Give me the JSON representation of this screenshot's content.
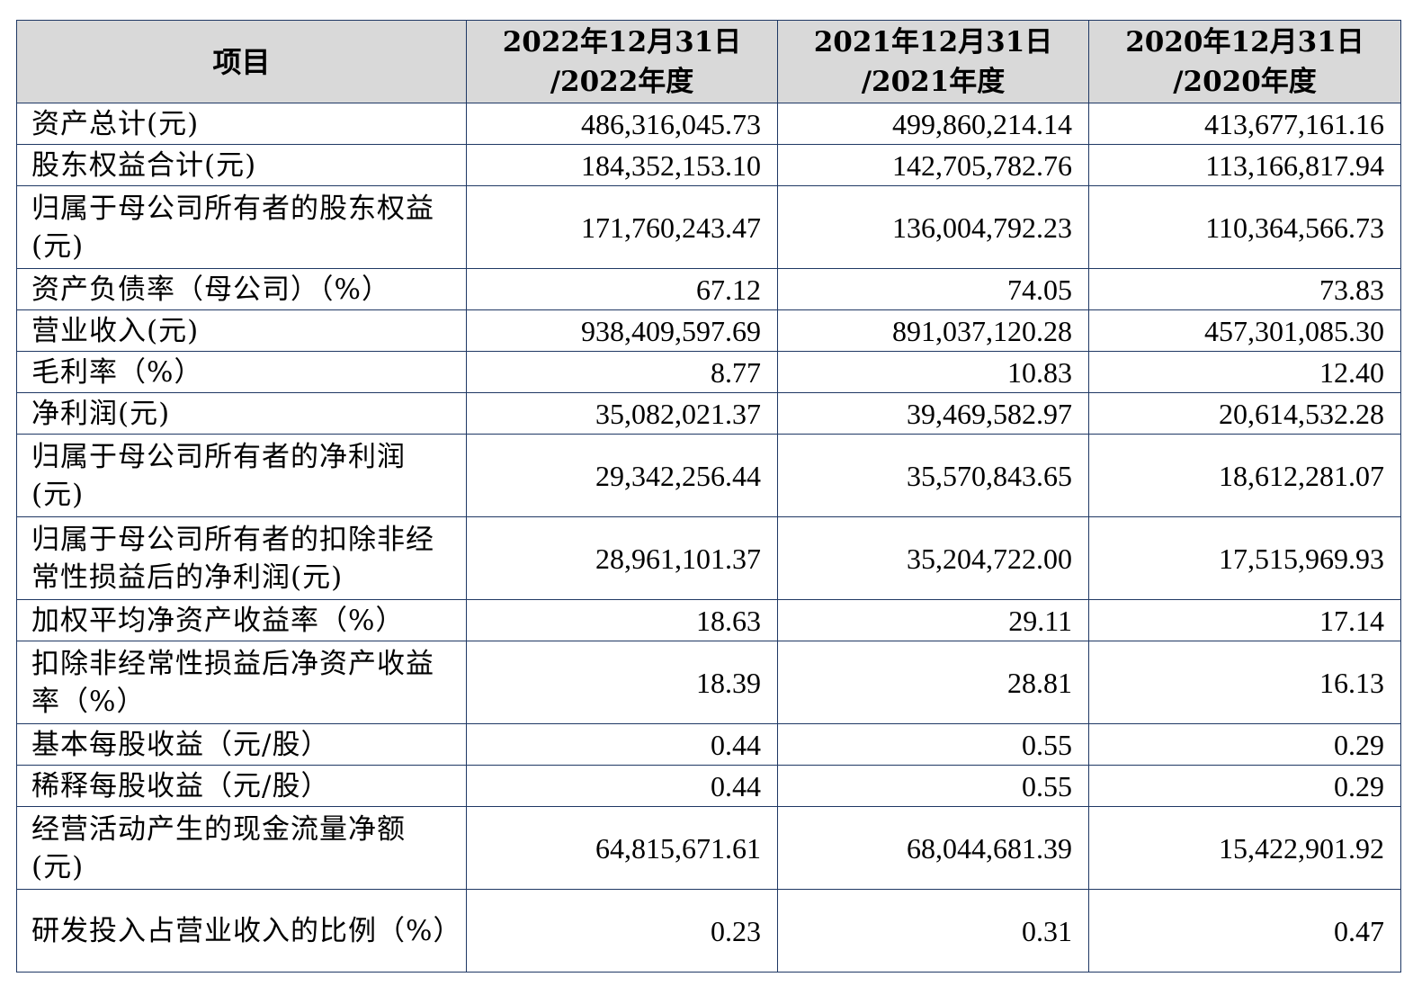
{
  "table": {
    "header": {
      "item": "项目",
      "cols": [
        {
          "line1": "2022年12月31日",
          "line2": "/2022年度"
        },
        {
          "line1": "2021年12月31日",
          "line2": "/2021年度"
        },
        {
          "line1": "2020年12月31日",
          "line2": "/2020年度"
        }
      ]
    },
    "rows": [
      {
        "label": "资产总计(元)",
        "v2022": "486,316,045.73",
        "v2021": "499,860,214.14",
        "v2020": "413,677,161.16"
      },
      {
        "label": "股东权益合计(元)",
        "v2022": "184,352,153.10",
        "v2021": "142,705,782.76",
        "v2020": "113,166,817.94"
      },
      {
        "label": "归属于母公司所有者的股东权益(元)",
        "v2022": "171,760,243.47",
        "v2021": "136,004,792.23",
        "v2020": "110,364,566.73"
      },
      {
        "label": "资产负债率（母公司）（%）",
        "v2022": "67.12",
        "v2021": "74.05",
        "v2020": "73.83"
      },
      {
        "label": "营业收入(元)",
        "v2022": "938,409,597.69",
        "v2021": "891,037,120.28",
        "v2020": "457,301,085.30"
      },
      {
        "label": "毛利率（%）",
        "v2022": "8.77",
        "v2021": "10.83",
        "v2020": "12.40"
      },
      {
        "label": "净利润(元)",
        "v2022": "35,082,021.37",
        "v2021": "39,469,582.97",
        "v2020": "20,614,532.28"
      },
      {
        "label": "归属于母公司所有者的净利润(元)",
        "v2022": "29,342,256.44",
        "v2021": "35,570,843.65",
        "v2020": "18,612,281.07"
      },
      {
        "label": "归属于母公司所有者的扣除非经常性损益后的净利润(元)",
        "v2022": "28,961,101.37",
        "v2021": "35,204,722.00",
        "v2020": "17,515,969.93"
      },
      {
        "label": "加权平均净资产收益率（%）",
        "v2022": "18.63",
        "v2021": "29.11",
        "v2020": "17.14"
      },
      {
        "label": "扣除非经常性损益后净资产收益率（%）",
        "v2022": "18.39",
        "v2021": "28.81",
        "v2020": "16.13"
      },
      {
        "label": "基本每股收益（元/股）",
        "v2022": "0.44",
        "v2021": "0.55",
        "v2020": "0.29"
      },
      {
        "label": "稀释每股收益（元/股）",
        "v2022": "0.44",
        "v2021": "0.55",
        "v2020": "0.29"
      },
      {
        "label": "经营活动产生的现金流量净额(元)",
        "v2022": "64,815,671.61",
        "v2021": "68,044,681.39",
        "v2020": "15,422,901.92"
      },
      {
        "label": "研发投入占营业收入的比例（%）",
        "v2022": "0.23",
        "v2021": "0.31",
        "v2020": "0.47"
      }
    ]
  }
}
